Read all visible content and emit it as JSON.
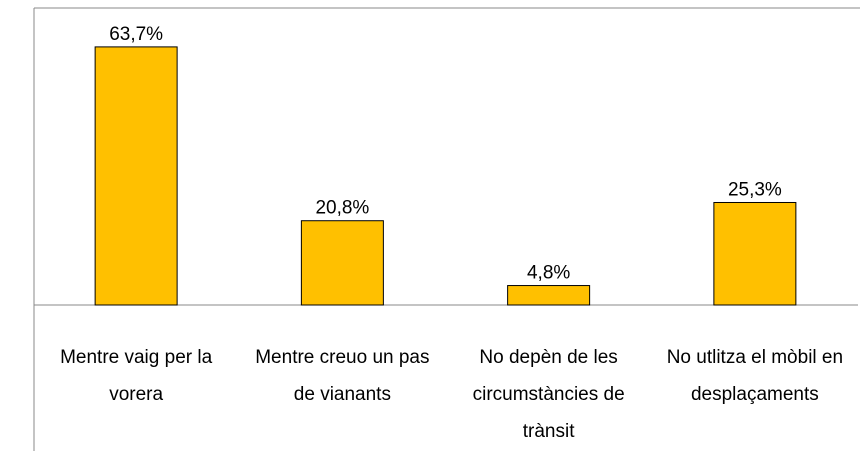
{
  "chart_data": {
    "type": "bar",
    "categories": [
      "Mentre vaig per la vorera",
      "Mentre creuo un pas de vianants",
      "No depèn de les circumstàncies de trànsit",
      "No utlitza el mòbil en desplaçaments"
    ],
    "values": [
      63.7,
      20.8,
      4.8,
      25.3
    ],
    "value_labels": [
      "63,7%",
      "20,8%",
      "4,8%",
      "25,3%"
    ],
    "color": "#ffc000",
    "ylim": [
      0,
      73.3
    ]
  }
}
